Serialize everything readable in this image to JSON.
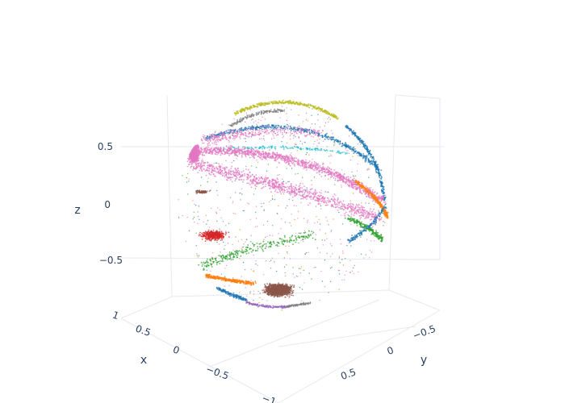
{
  "chart_data": {
    "type": "scatter",
    "subtype": "3d-scatter",
    "title": "",
    "axes": {
      "x": {
        "title": "x",
        "ticks": [
          "1",
          "0.5",
          "0",
          "−0.5",
          "−1"
        ]
      },
      "y": {
        "title": "y",
        "ticks": [
          "−0.5",
          "0",
          "0.5"
        ]
      },
      "z": {
        "title": "z",
        "ticks": [
          "0.5",
          "0",
          "−0.5"
        ]
      }
    },
    "grid": true,
    "legend": "none",
    "shape": "unit-sphere point cloud",
    "series": [
      {
        "color": "#e377c2",
        "band": "upper-left band and broad middle sweep",
        "density": "very high"
      },
      {
        "color": "#1f77b4",
        "band": "upper arc and lower-left arc",
        "density": "high"
      },
      {
        "color": "#bcbd22",
        "band": "top arc",
        "density": "medium"
      },
      {
        "color": "#7f7f7f",
        "band": "upper arc and bottom edge",
        "density": "medium"
      },
      {
        "color": "#17becf",
        "band": "upper middle band",
        "density": "low"
      },
      {
        "color": "#ff7f0e",
        "band": "right edge and lower-left arc",
        "density": "medium"
      },
      {
        "color": "#2ca02c",
        "band": "right lower and lower-left scatter",
        "density": "medium"
      },
      {
        "color": "#d62728",
        "band": "left middle patch",
        "density": "medium"
      },
      {
        "color": "#8c564b",
        "band": "bottom cluster",
        "density": "very high"
      },
      {
        "color": "#9467bd",
        "band": "bottom edge",
        "density": "low"
      }
    ]
  }
}
